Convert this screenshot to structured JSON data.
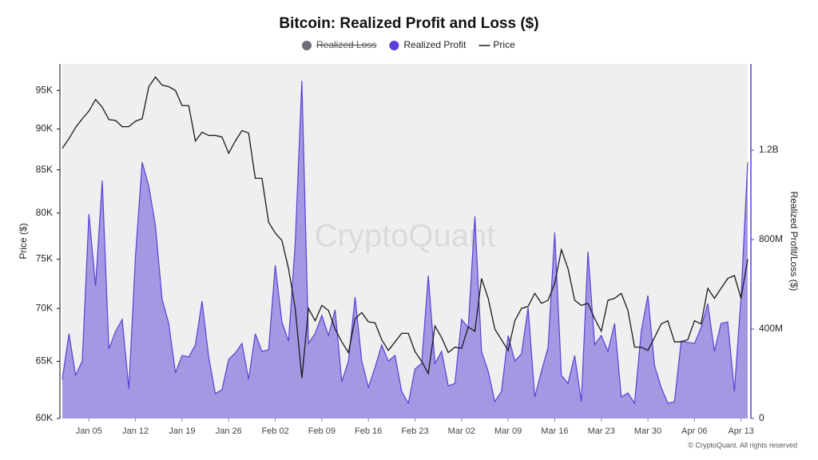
{
  "chart_data": {
    "type": "area-line",
    "title": "Bitcoin: Realized Profit and Loss ($)",
    "watermark": "CryptoQuant",
    "credit": "© CryptoQuant. All rights reserved",
    "ylabel": "Price ($)",
    "y2label": "Realized Profit/Loss ($)",
    "log_y": true,
    "categories": [
      null,
      null,
      null,
      null,
      "Jan 05",
      null,
      null,
      null,
      null,
      null,
      null,
      "Jan 12",
      null,
      null,
      null,
      null,
      null,
      null,
      "Jan 19",
      null,
      null,
      null,
      null,
      null,
      null,
      "Jan 26",
      null,
      null,
      null,
      null,
      null,
      null,
      "Feb 02",
      null,
      null,
      null,
      null,
      null,
      null,
      "Feb 09",
      null,
      null,
      null,
      null,
      null,
      null,
      "Feb 16",
      null,
      null,
      null,
      null,
      null,
      null,
      "Feb 23",
      null,
      null,
      null,
      null,
      null,
      null,
      "Mar 02",
      null,
      null,
      null,
      null,
      null,
      null,
      "Mar 09",
      null,
      null,
      null,
      null,
      null,
      null,
      "Mar 16",
      null,
      null,
      null,
      null,
      null,
      null,
      "Mar 23",
      null,
      null,
      null,
      null,
      null,
      null,
      "Mar 30",
      null,
      null,
      null,
      null,
      null,
      null,
      "Apr 06",
      null,
      null,
      null,
      null,
      null,
      null,
      "Apr 13",
      null
    ],
    "series": [
      {
        "name": "Realized Loss",
        "color": "#6e6e78",
        "hidden": true
      },
      {
        "name": "Realized Profit",
        "color": "#5b3fd6",
        "axis": "y2",
        "kind": "area",
        "values": [
          175000000,
          379000000,
          193000000,
          257000000,
          914000000,
          593000000,
          1064000000,
          311000000,
          389000000,
          443000000,
          132000000,
          729000000,
          1146000000,
          1039000000,
          861000000,
          532000000,
          425000000,
          204000000,
          282000000,
          275000000,
          329000000,
          525000000,
          275000000,
          111000000,
          129000000,
          264000000,
          293000000,
          336000000,
          175000000,
          379000000,
          300000000,
          307000000,
          686000000,
          432000000,
          346000000,
          782000000,
          1511000000,
          336000000,
          380000000,
          461000000,
          371000000,
          486000000,
          164000000,
          257000000,
          543000000,
          257000000,
          139000000,
          229000000,
          329000000,
          257000000,
          282000000,
          121000000,
          68000000,
          221000000,
          246000000,
          639000000,
          246000000,
          300000000,
          146000000,
          157000000,
          443000000,
          407000000,
          904000000,
          300000000,
          211000000,
          75000000,
          121000000,
          371000000,
          257000000,
          289000000,
          496000000,
          96000000,
          211000000,
          318000000,
          832000000,
          193000000,
          157000000,
          282000000,
          75000000,
          746000000,
          330000000,
          371000000,
          300000000,
          425000000,
          96000000,
          114000000,
          68000000,
          389000000,
          550000000,
          236000000,
          139000000,
          68000000,
          75000000,
          346000000,
          340000000,
          336000000,
          407000000,
          514000000,
          300000000,
          425000000,
          432000000,
          121000000,
          543000000,
          1146000000
        ]
      },
      {
        "name": "Price",
        "color": "#1a1a1a",
        "kind": "line",
        "values": [
          87600,
          88800,
          90200,
          91300,
          92300,
          93800,
          92800,
          91200,
          91100,
          90300,
          90300,
          91000,
          91300,
          95500,
          96800,
          95700,
          95500,
          95000,
          93000,
          93000,
          88500,
          89600,
          89200,
          89200,
          89000,
          87000,
          88500,
          89800,
          89500,
          84000,
          84000,
          79000,
          77800,
          77000,
          74000,
          70000,
          63500,
          70000,
          68800,
          70300,
          69800,
          68000,
          66800,
          65800,
          69000,
          69600,
          68700,
          68600,
          67000,
          66000,
          66800,
          67600,
          67600,
          65900,
          65000,
          63900,
          68300,
          67200,
          65800,
          66300,
          66200,
          68200,
          67800,
          73000,
          71000,
          68000,
          67000,
          66000,
          68800,
          70000,
          70200,
          71500,
          70500,
          70800,
          72500,
          76000,
          74000,
          70800,
          70300,
          70500,
          69000,
          67800,
          70800,
          71000,
          71500,
          69800,
          66300,
          66300,
          66000,
          67200,
          68500,
          68800,
          66800,
          66800,
          67000,
          68800,
          68500,
          72000,
          71000,
          72000,
          73000,
          73300,
          71000,
          75000
        ]
      }
    ],
    "ylim": [
      60000,
      98600
    ],
    "yticks": [
      {
        "value": 60000,
        "label": "60K"
      },
      {
        "value": 65000,
        "label": "65K"
      },
      {
        "value": 70000,
        "label": "70K"
      },
      {
        "value": 75000,
        "label": "75K"
      },
      {
        "value": 80000,
        "label": "80K"
      },
      {
        "value": 85000,
        "label": "85K"
      },
      {
        "value": 90000,
        "label": "90K"
      },
      {
        "value": 95000,
        "label": "95K"
      }
    ],
    "y2lim": [
      0,
      1586000000
    ],
    "y2ticks": [
      0,
      {
        "value": 400000000,
        "label": "400M"
      },
      {
        "value": 800000000,
        "label": "800M"
      },
      {
        "value": 1200000000,
        "label": "1.2B"
      }
    ],
    "grid": false
  }
}
